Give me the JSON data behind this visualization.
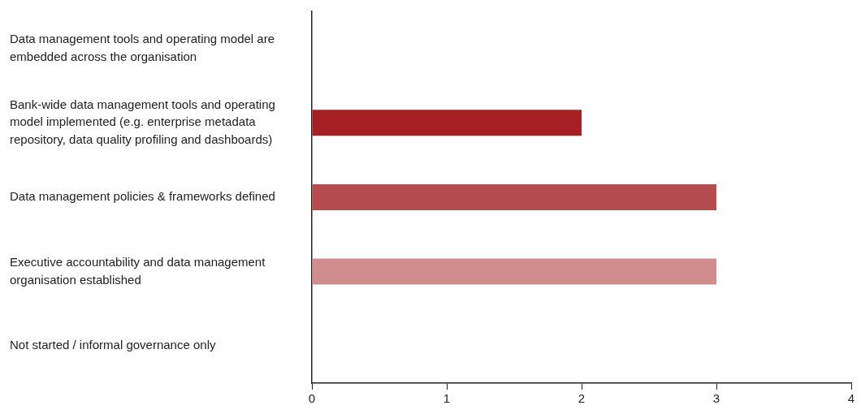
{
  "chart_data": {
    "type": "bar",
    "orientation": "horizontal",
    "categories": [
      "Data management tools and operating model are embedded across the organisation",
      "Bank-wide data management tools and operating model implemented (e.g. enterprise metadata repository, data quality profiling and dashboards)",
      "Data management policies & frameworks defined",
      "Executive accountability and data management organisation established",
      "Not started / informal governance only"
    ],
    "values": [
      0,
      2,
      3,
      3,
      0
    ],
    "colors": [
      "#a51f24",
      "#a51f24",
      "#b54d4f",
      "#d18c8d",
      "#d18c8d"
    ],
    "xlim": [
      0,
      4
    ],
    "xticks": [
      0,
      1,
      2,
      3,
      4
    ],
    "grid": false,
    "legend": false
  }
}
